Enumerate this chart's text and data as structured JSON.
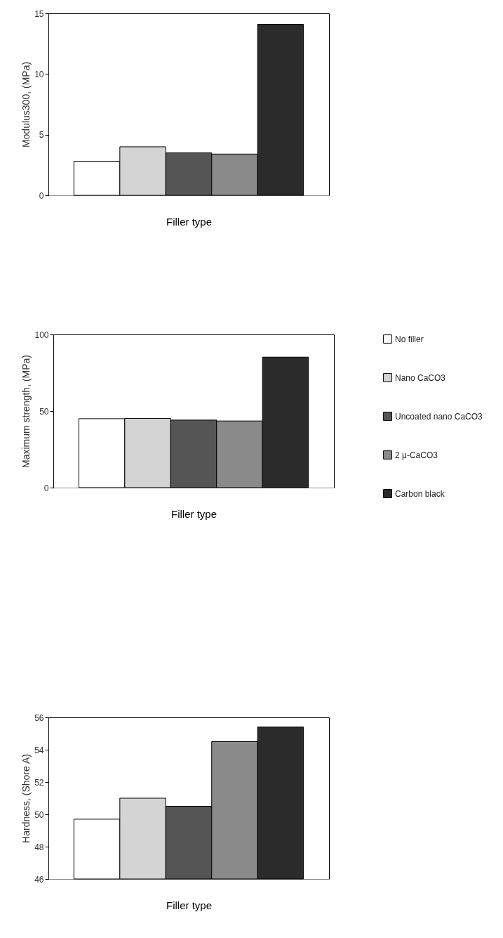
{
  "chart_data": [
    {
      "type": "bar",
      "ylabel": "Modulus300, (MPa)",
      "xlabel": "Filler type",
      "categories": [
        null
      ],
      "ylim": [
        0,
        15
      ],
      "yticks": [
        0,
        5,
        10,
        15
      ],
      "tick_labels": "y",
      "legend": false,
      "series": [
        {
          "color": "#ffffff",
          "values": [
            2.8
          ]
        },
        {
          "color": "#d4d4d4",
          "values": [
            4.0
          ]
        },
        {
          "color": "#555555",
          "values": [
            3.5
          ]
        },
        {
          "color": "#8a8a8a",
          "values": [
            3.4
          ]
        },
        {
          "color": "#2b2b2b",
          "values": [
            14.1
          ]
        }
      ]
    },
    {
      "type": "bar",
      "ylabel": "Maximum strength, (MPa)",
      "xlabel": "Filler type",
      "categories": [
        null
      ],
      "ylim": [
        0,
        100
      ],
      "yticks": [
        0,
        50,
        100
      ],
      "tick_labels": "y",
      "legend": "right",
      "series": [
        {
          "name": "No filler",
          "color": "#ffffff",
          "values": [
            45
          ]
        },
        {
          "name": "Nano CaCO3",
          "color": "#d4d4d4",
          "values": [
            45.2
          ]
        },
        {
          "name": "Uncoated nano CaCO3",
          "color": "#555555",
          "values": [
            44.1
          ]
        },
        {
          "name": "2 μ-CaCO3",
          "color": "#8a8a8a",
          "values": [
            43.5
          ]
        },
        {
          "name": "Carbon black",
          "color": "#2b2b2b",
          "values": [
            85.2
          ]
        }
      ]
    },
    {
      "type": "bar",
      "ylabel": "Hardness, (Shore A)",
      "xlabel": "Filler type",
      "categories": [
        null
      ],
      "ylim": [
        46,
        56
      ],
      "yticks": [
        46,
        48,
        50,
        52,
        54,
        56
      ],
      "tick_labels": "y",
      "legend": false,
      "series": [
        {
          "color": "#ffffff",
          "values": [
            49.7
          ]
        },
        {
          "color": "#d4d4d4",
          "values": [
            51.0
          ]
        },
        {
          "color": "#555555",
          "values": [
            50.5
          ]
        },
        {
          "color": "#8a8a8a",
          "values": [
            54.5
          ]
        },
        {
          "color": "#2b2b2b",
          "values": [
            55.4
          ]
        }
      ]
    }
  ]
}
